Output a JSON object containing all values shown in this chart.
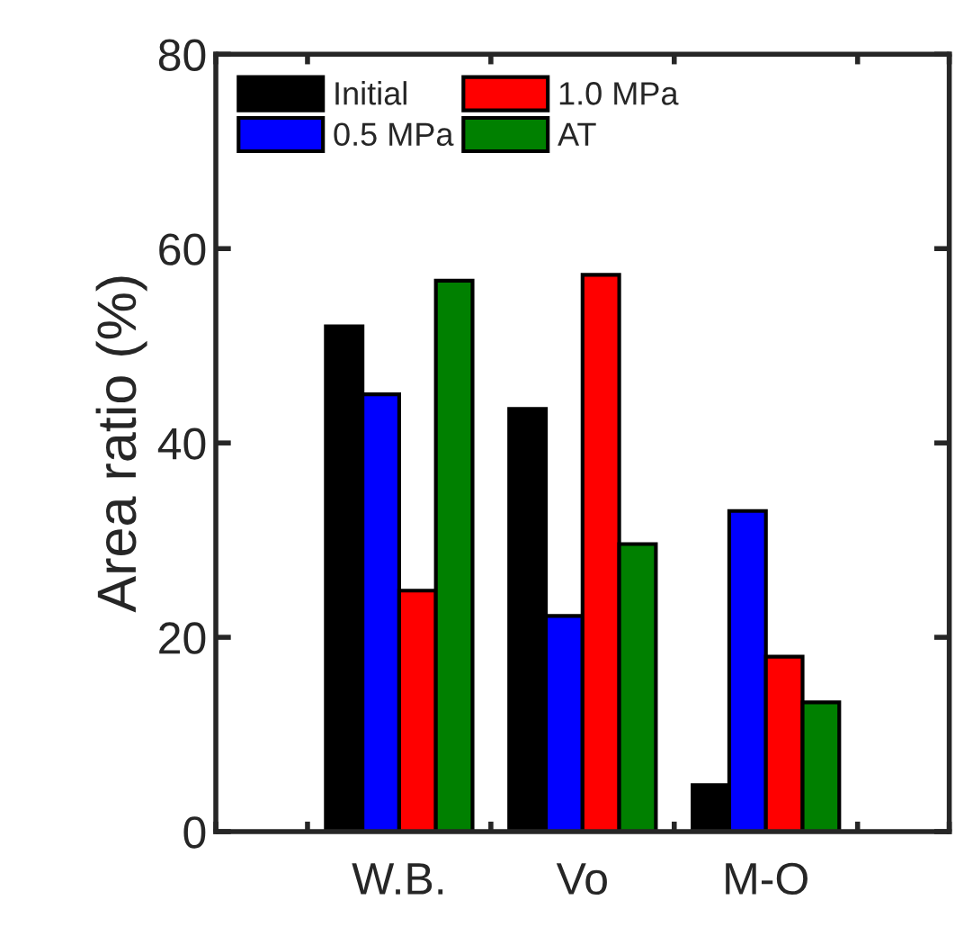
{
  "chart_data": {
    "type": "bar",
    "ylabel": "Area ratio (%)",
    "categories": [
      "W.B.",
      "Vo",
      "M-O"
    ],
    "series": [
      {
        "name": "Initial",
        "color": "#000000",
        "values": [
          52,
          43.5,
          4.8
        ]
      },
      {
        "name": "0.5 MPa",
        "color": "#0000ff",
        "values": [
          45,
          22.2,
          33
        ]
      },
      {
        "name": "1.0 MPa",
        "color": "#ff0000",
        "values": [
          24.8,
          57.3,
          18
        ]
      },
      {
        "name": "AT",
        "color": "#008000",
        "values": [
          56.7,
          29.6,
          13.3
        ]
      }
    ],
    "ylim": [
      0,
      80
    ],
    "yticks": [
      0,
      20,
      40,
      60,
      80
    ],
    "grid": false,
    "legend": "top left"
  }
}
